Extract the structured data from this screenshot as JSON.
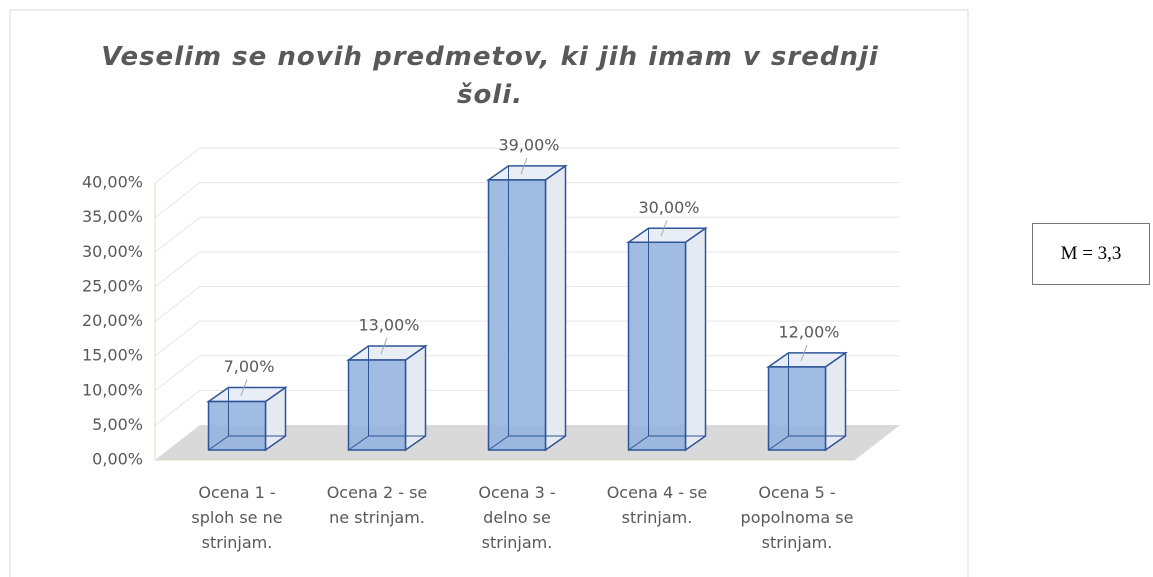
{
  "chart_data": {
    "type": "bar3d",
    "title": "Veselim se novih predmetov, ki jih imam v srednji šoli.",
    "categories": [
      "Ocena 1 - sploh se ne strinjam.",
      "Ocena 2 - se ne strinjam.",
      "Ocena 3 - delno se strinjam.",
      "Ocena 4 - se strinjam.",
      "Ocena 5 - popolnoma se strinjam."
    ],
    "values": [
      7,
      13,
      39,
      30,
      12
    ],
    "value_labels": [
      "7,00%",
      "13,00%",
      "39,00%",
      "30,00%",
      "12,00%"
    ],
    "color": "#8fb0de",
    "ylim": [
      0,
      40
    ],
    "yticks": [
      {
        "value": 0,
        "label": "0,00%"
      },
      {
        "value": 5,
        "label": "5,00%"
      },
      {
        "value": 10,
        "label": "10,00%"
      },
      {
        "value": 15,
        "label": "15,00%"
      },
      {
        "value": 20,
        "label": "20,00%"
      },
      {
        "value": 25,
        "label": "25,00%"
      },
      {
        "value": 30,
        "label": "30,00%"
      },
      {
        "value": 35,
        "label": "35,00%"
      },
      {
        "value": 40,
        "label": "40,00%"
      }
    ],
    "grid": true,
    "annotation": "M = 3,3"
  }
}
